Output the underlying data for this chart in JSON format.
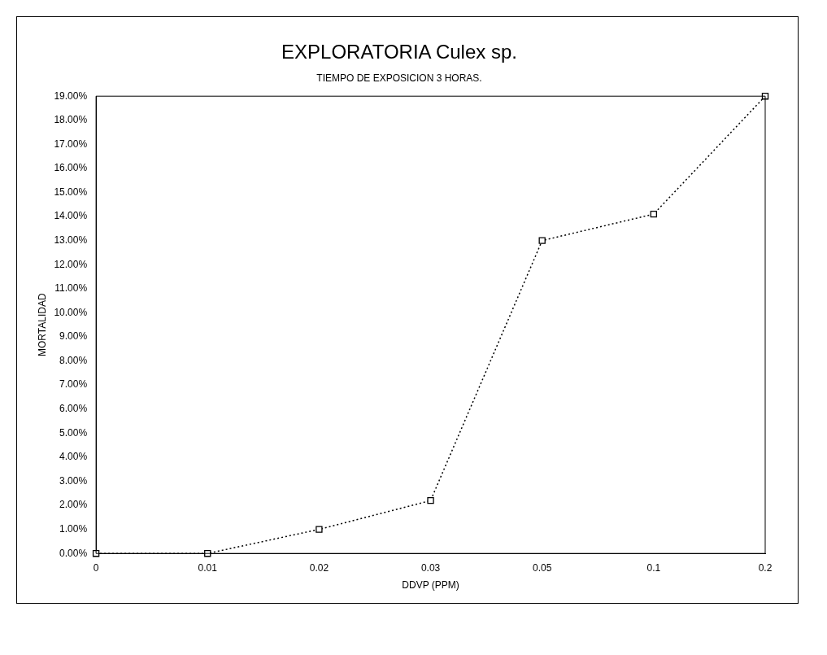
{
  "chart_data": {
    "type": "line",
    "title": "EXPLORATORIA Culex sp.",
    "subtitle": "TIEMPO DE EXPOSICION 3 HORAS.",
    "xlabel": "DDVP (PPM)",
    "ylabel": "MORTALIDAD",
    "categories": [
      "0",
      "0.01",
      "0.02",
      "0.03",
      "0.05",
      "0.1",
      "0.2"
    ],
    "series": [
      {
        "color": "#000000",
        "values": [
          0,
          0,
          1,
          2.2,
          13,
          14.1,
          19
        ]
      }
    ],
    "ylim": [
      0,
      19
    ],
    "yticks": [
      {
        "value": 0,
        "label": "0.00%"
      },
      {
        "value": 1,
        "label": "1.00%"
      },
      {
        "value": 2,
        "label": "2.00%"
      },
      {
        "value": 3,
        "label": "3.00%"
      },
      {
        "value": 4,
        "label": "4.00%"
      },
      {
        "value": 5,
        "label": "5.00%"
      },
      {
        "value": 6,
        "label": "6.00%"
      },
      {
        "value": 7,
        "label": "7.00%"
      },
      {
        "value": 8,
        "label": "8.00%"
      },
      {
        "value": 9,
        "label": "9.00%"
      },
      {
        "value": 10,
        "label": "10.00%"
      },
      {
        "value": 11,
        "label": "11.00%"
      },
      {
        "value": 12,
        "label": "12.00%"
      },
      {
        "value": 13,
        "label": "13.00%"
      },
      {
        "value": 14,
        "label": "14.00%"
      },
      {
        "value": 15,
        "label": "15.00%"
      },
      {
        "value": 16,
        "label": "16.00%"
      },
      {
        "value": 17,
        "label": "17.00%"
      },
      {
        "value": 18,
        "label": "18.00%"
      },
      {
        "value": 19,
        "label": "19.00%"
      }
    ],
    "marker": "square",
    "line_style": "dotted",
    "grid": false,
    "legend": false
  }
}
